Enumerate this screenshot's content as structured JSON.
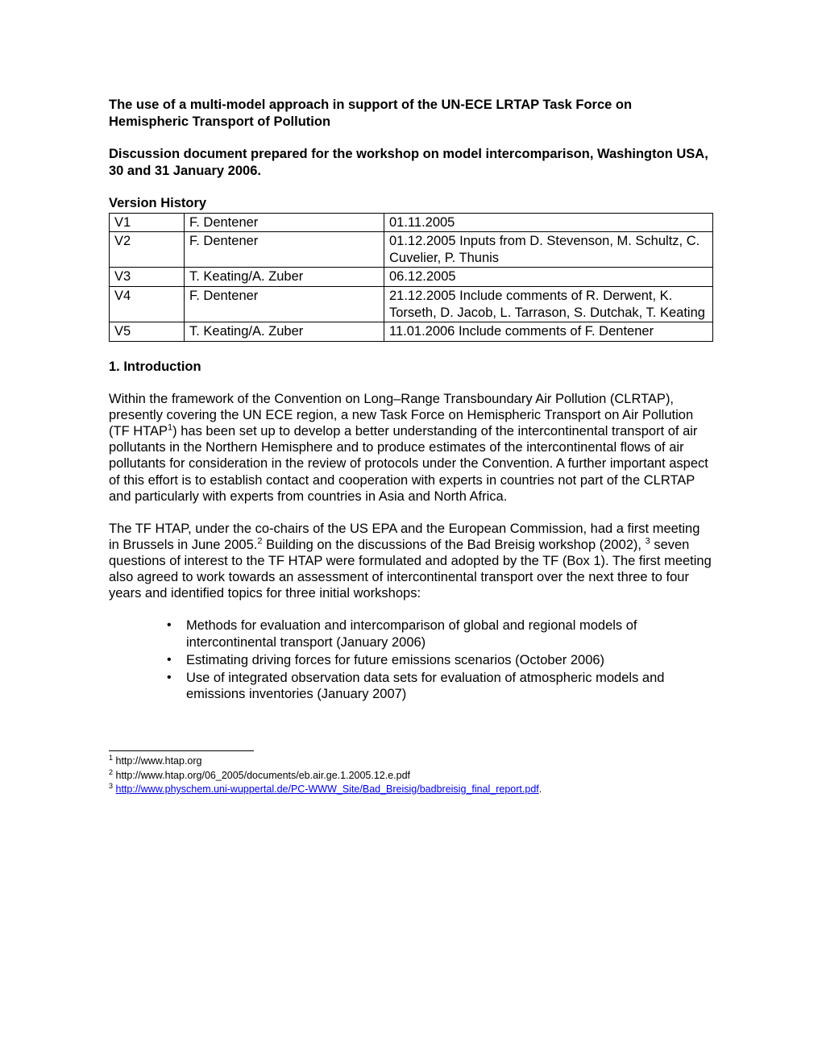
{
  "title": "The use of a multi-model approach in support of the UN-ECE LRTAP Task Force on Hemispheric Transport of Pollution",
  "subtitle": "Discussion document prepared for the workshop on model intercomparison, Washington USA, 30 and 31 January 2006.",
  "version_history": {
    "heading": "Version History",
    "rows": [
      {
        "v": "V1",
        "author": "F. Dentener",
        "note": "01.11.2005"
      },
      {
        "v": "V2",
        "author": "F. Dentener",
        "note": "01.12.2005 Inputs from D. Stevenson, M. Schultz, C. Cuvelier, P. Thunis"
      },
      {
        "v": "V3",
        "author": "T. Keating/A. Zuber",
        "note": "06.12.2005"
      },
      {
        "v": "V4",
        "author": "F. Dentener",
        "note": "21.12.2005 Include comments of R. Derwent, K. Torseth, D. Jacob, L. Tarrason, S. Dutchak, T. Keating"
      },
      {
        "v": "V5",
        "author": "T. Keating/A. Zuber",
        "note": "11.01.2006 Include comments of F. Dentener"
      }
    ]
  },
  "section1": {
    "heading": "1. Introduction",
    "para1_a": "Within the framework of the Convention on Long–Range Transboundary Air Pollution (CLRTAP), presently covering the UN ECE region, a new Task Force on Hemispheric Transport on Air Pollution (TF HTAP",
    "sup1": "1",
    "para1_b": ") has been set up to develop a better understanding of the intercontinental transport of air pollutants in the Northern Hemisphere and to produce estimates of the intercontinental flows of air pollutants for consideration in the review of protocols under the Convention. A further important aspect of this effort is to establish contact and cooperation with experts in countries not part of the CLRTAP and particularly with experts from countries in Asia and North Africa.",
    "para2_a": "The TF HTAP, under the co-chairs of the US EPA and the European Commission, had a first meeting in Brussels in June 2005.",
    "sup2": "2",
    "para2_b": "  Building on the discussions of the Bad Breisig workshop (2002), ",
    "sup3": "3",
    "para2_c": " seven questions of interest to the TF HTAP were formulated and adopted by the TF (Box 1). The first meeting also agreed to work towards an assessment of intercontinental transport over the next three to four years and identified topics for three initial workshops:",
    "bullets": [
      "Methods for evaluation and intercomparison of global and regional models of intercontinental transport (January 2006)",
      "Estimating driving forces for future emissions scenarios (October 2006)",
      "Use of integrated observation data sets for evaluation of atmospheric models and emissions inventories (January 2007)"
    ]
  },
  "footnotes": {
    "f1_sup": "1",
    "f1_text": " http://www.htap.org",
    "f2_sup": "2",
    "f2_text": " http://www.htap.org/06_2005/documents/eb.air.ge.1.2005.12.e.pdf",
    "f3_sup": "3",
    "f3_pre": " ",
    "f3_link": "http://www.physchem.uni-wuppertal.de/PC-WWW_Site/Bad_Breisig/badbreisig_final_report.pdf",
    "f3_post": "."
  }
}
